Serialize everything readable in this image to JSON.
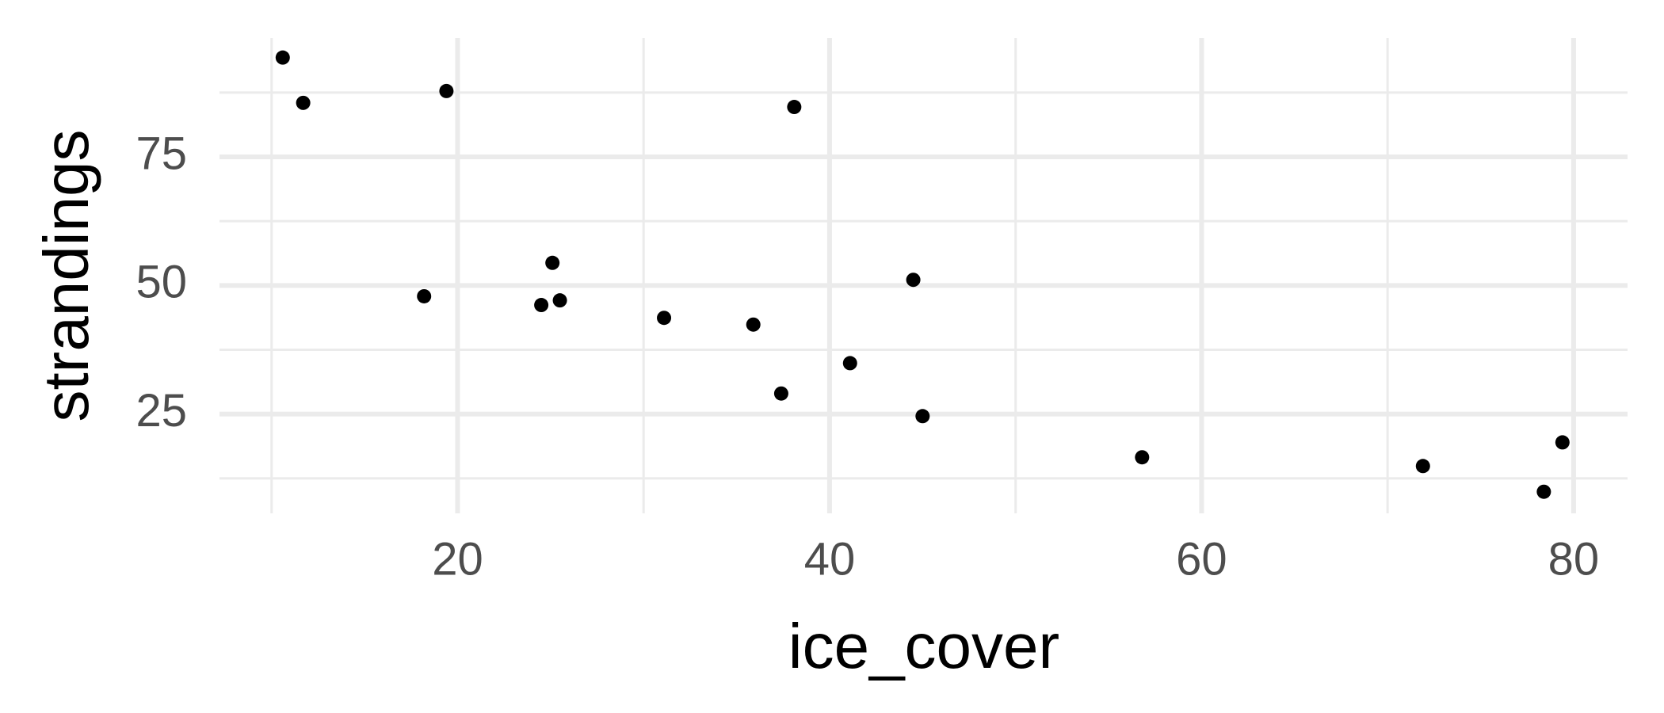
{
  "chart_data": {
    "type": "scatter",
    "x_label": "ice_cover",
    "y_label": "strandings",
    "x": [
      10.6,
      11.7,
      19.4,
      38.1,
      18.2,
      25.1,
      24.5,
      25.5,
      31.1,
      35.9,
      44.5,
      41.1,
      37.4,
      45.0,
      56.8,
      71.9,
      79.4,
      78.4
    ],
    "values": [
      94.3,
      85.5,
      87.8,
      84.7,
      47.9,
      54.4,
      46.2,
      47.1,
      43.7,
      42.4,
      51.1,
      34.9,
      29.0,
      24.6,
      16.6,
      14.9,
      19.5,
      9.9
    ],
    "color": "#000000",
    "xlim": [
      7.2,
      82.9
    ],
    "ylim": [
      5.7,
      98.1
    ],
    "xticks": [
      20,
      40,
      60,
      80
    ],
    "yticks": [
      25,
      50,
      75
    ],
    "xminor": [
      10,
      30,
      50,
      70
    ],
    "yminor": [
      12.5,
      37.5,
      62.5,
      87.5
    ],
    "grid": true
  }
}
